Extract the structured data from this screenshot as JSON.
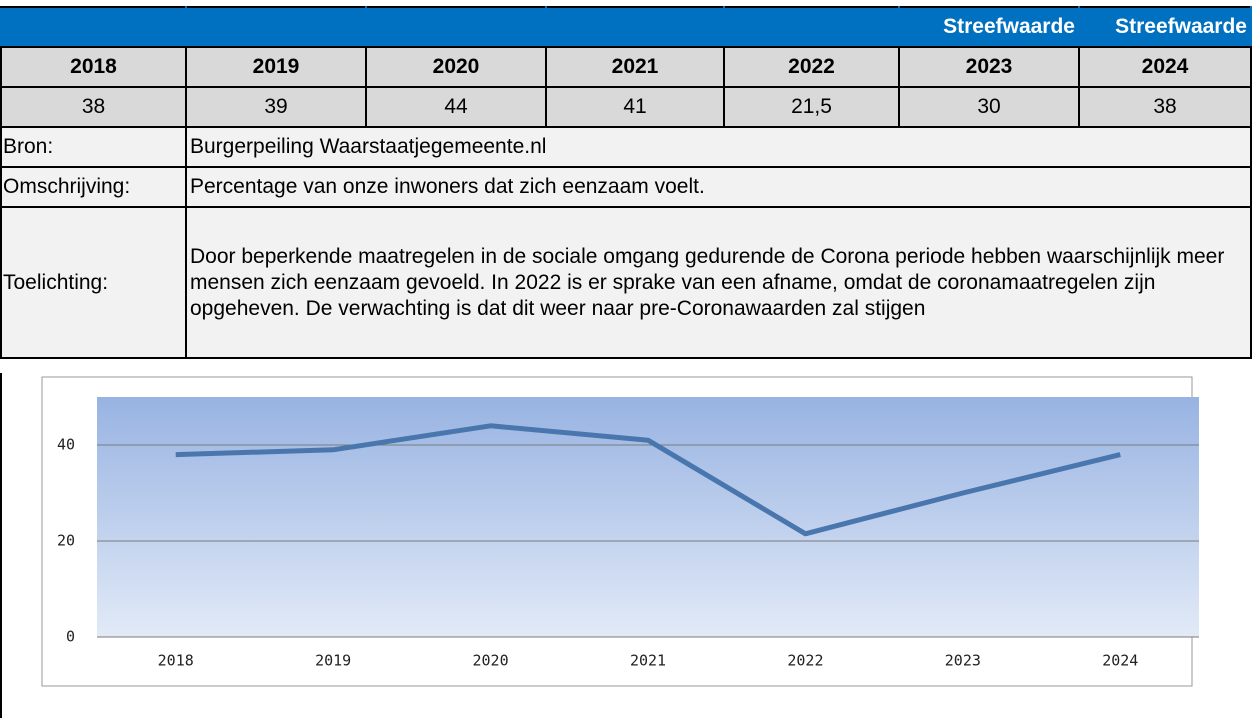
{
  "table": {
    "header": [
      "Streefwaarde",
      "Streefwaarde"
    ],
    "years": [
      "2018",
      "2019",
      "2020",
      "2021",
      "2022",
      "2023",
      "2024"
    ],
    "values": [
      "38",
      "39",
      "44",
      "41",
      "21,5",
      "30",
      "38"
    ],
    "rows": [
      [
        "Bron:",
        "Burgerpeiling Waarstaatjegemeente.nl"
      ],
      [
        "Omschrijving:",
        "Percentage van onze inwoners dat zich eenzaam voelt."
      ],
      [
        "Toelichting:",
        "Door beperkende maatregelen in de sociale omgang gedurende de Corona periode hebben waarschijnlijk meer mensen zich eenzaam gevoeld. In 2022 is er sprake van een afname, omdat de coronamaatregelen zijn opgeheven. De verwachting is dat dit weer naar pre-Coronawaarden zal stijgen"
      ]
    ]
  },
  "chart_data": {
    "type": "line",
    "categories": [
      "2018",
      "2019",
      "2020",
      "2021",
      "2022",
      "2023",
      "2024"
    ],
    "values": [
      38,
      39,
      44,
      41,
      21.5,
      30,
      38
    ],
    "color": "#4a76ae",
    "ylim": [
      0,
      50
    ],
    "yticks": [
      0,
      20,
      40
    ],
    "grid": true
  }
}
